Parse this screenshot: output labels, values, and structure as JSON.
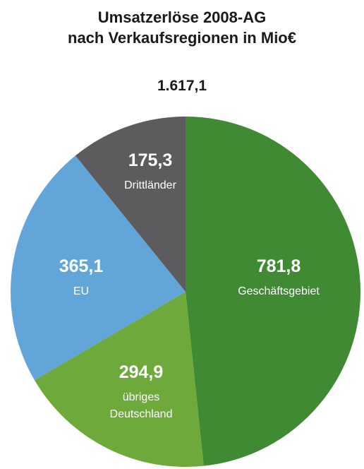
{
  "chart_data": {
    "type": "pie",
    "title": "Umsatzerlöse 2008-AG",
    "subtitle": "nach Verkaufsregionen in Mio€",
    "total_label": "1.617,1",
    "slices": [
      {
        "label_lines": [
          "Geschäftsgebiet"
        ],
        "value": 781.8,
        "value_label": "781,8",
        "color": "#3f8a33"
      },
      {
        "label_lines": [
          "übriges",
          "Deutschland"
        ],
        "value": 294.9,
        "value_label": "294,9",
        "color": "#6ea93c"
      },
      {
        "label_lines": [
          "EU"
        ],
        "value": 365.1,
        "value_label": "365,1",
        "color": "#62a6d9"
      },
      {
        "label_lines": [
          "Drittländer"
        ],
        "value": 175.3,
        "value_label": "175,3",
        "color": "#5c5c5e"
      }
    ]
  }
}
